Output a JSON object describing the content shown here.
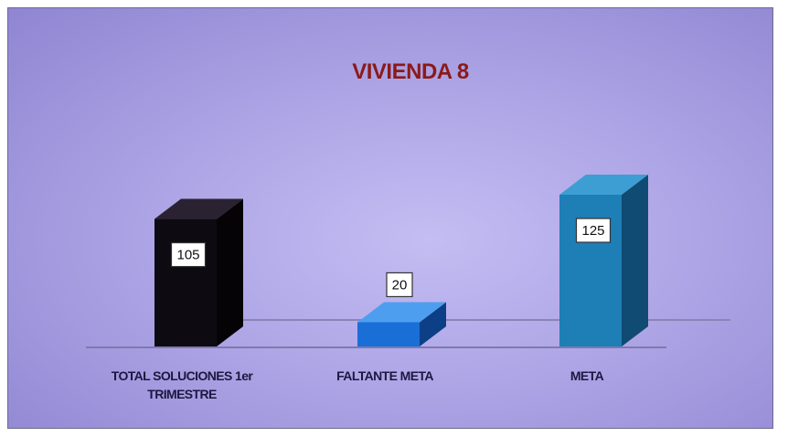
{
  "chart_data": {
    "type": "bar",
    "title": "VIVIENDA 8",
    "categories": [
      [
        "TOTAL SOLUCIONES 1er",
        "TRIMESTRE"
      ],
      [
        "FALTANTE META"
      ],
      [
        "META"
      ]
    ],
    "values": [
      105,
      20,
      125
    ],
    "data_labels": [
      "105",
      "20",
      "125"
    ],
    "colors": {
      "front": [
        "#0e0a12",
        "#1a6fd6",
        "#1d7fb6"
      ],
      "side": [
        "#050306",
        "#0d3f86",
        "#0f4b73"
      ],
      "top": [
        "#2a2230",
        "#4e9ef0",
        "#3c9ed2"
      ]
    },
    "xlabel": "",
    "ylabel": "",
    "ylim": [
      0,
      125
    ],
    "grid": false,
    "legend": "none",
    "style": "3d-column"
  }
}
